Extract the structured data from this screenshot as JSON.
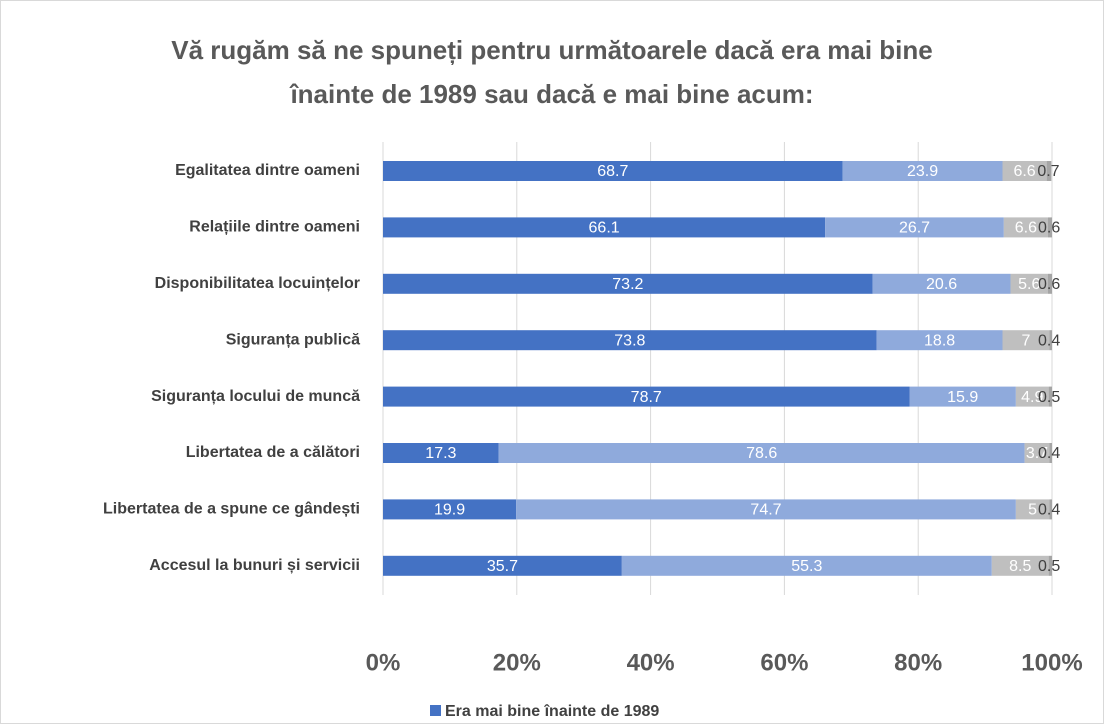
{
  "chart_data": {
    "type": "stacked-barh",
    "title": "Vă rugăm să ne spuneți pentru următoarele dacă era mai bine înainte de 1989 sau dacă e mai bine acum:",
    "categories": [
      "Egalitatea dintre oameni",
      "Relațiile dintre oameni",
      "Disponibilitatea locuințelor",
      "Siguranța publică",
      "Siguranța locului de muncă",
      "Libertatea de a călători",
      "Libertatea de a spune ce gândești",
      "Accesul la bunuri și servicii"
    ],
    "series": [
      {
        "name": "Era mai bine înainte de 1989",
        "color": "#4472c4",
        "values": [
          68.7,
          66.1,
          73.2,
          73.8,
          78.7,
          17.3,
          19.9,
          35.7
        ]
      },
      {
        "color": "#8faadc",
        "values": [
          23.9,
          26.7,
          20.6,
          18.8,
          15.9,
          78.6,
          74.7,
          55.3
        ]
      },
      {
        "color": "#bfbfbf",
        "values": [
          6.6,
          6.6,
          5.6,
          7.0,
          4.9,
          3.7,
          5.0,
          8.5
        ]
      },
      {
        "color": "#a5a5a5",
        "values": [
          0.7,
          0.6,
          0.6,
          0.4,
          0.5,
          0.4,
          0.4,
          0.5
        ]
      }
    ],
    "xlim": [
      0,
      100
    ],
    "xticks": [
      {
        "value": 0,
        "label": "0%"
      },
      {
        "value": 20,
        "label": "20%"
      },
      {
        "value": 40,
        "label": "40%"
      },
      {
        "value": 60,
        "label": "60%"
      },
      {
        "value": 80,
        "label": "80%"
      },
      {
        "value": 100,
        "label": "100%"
      }
    ],
    "grid": true
  }
}
